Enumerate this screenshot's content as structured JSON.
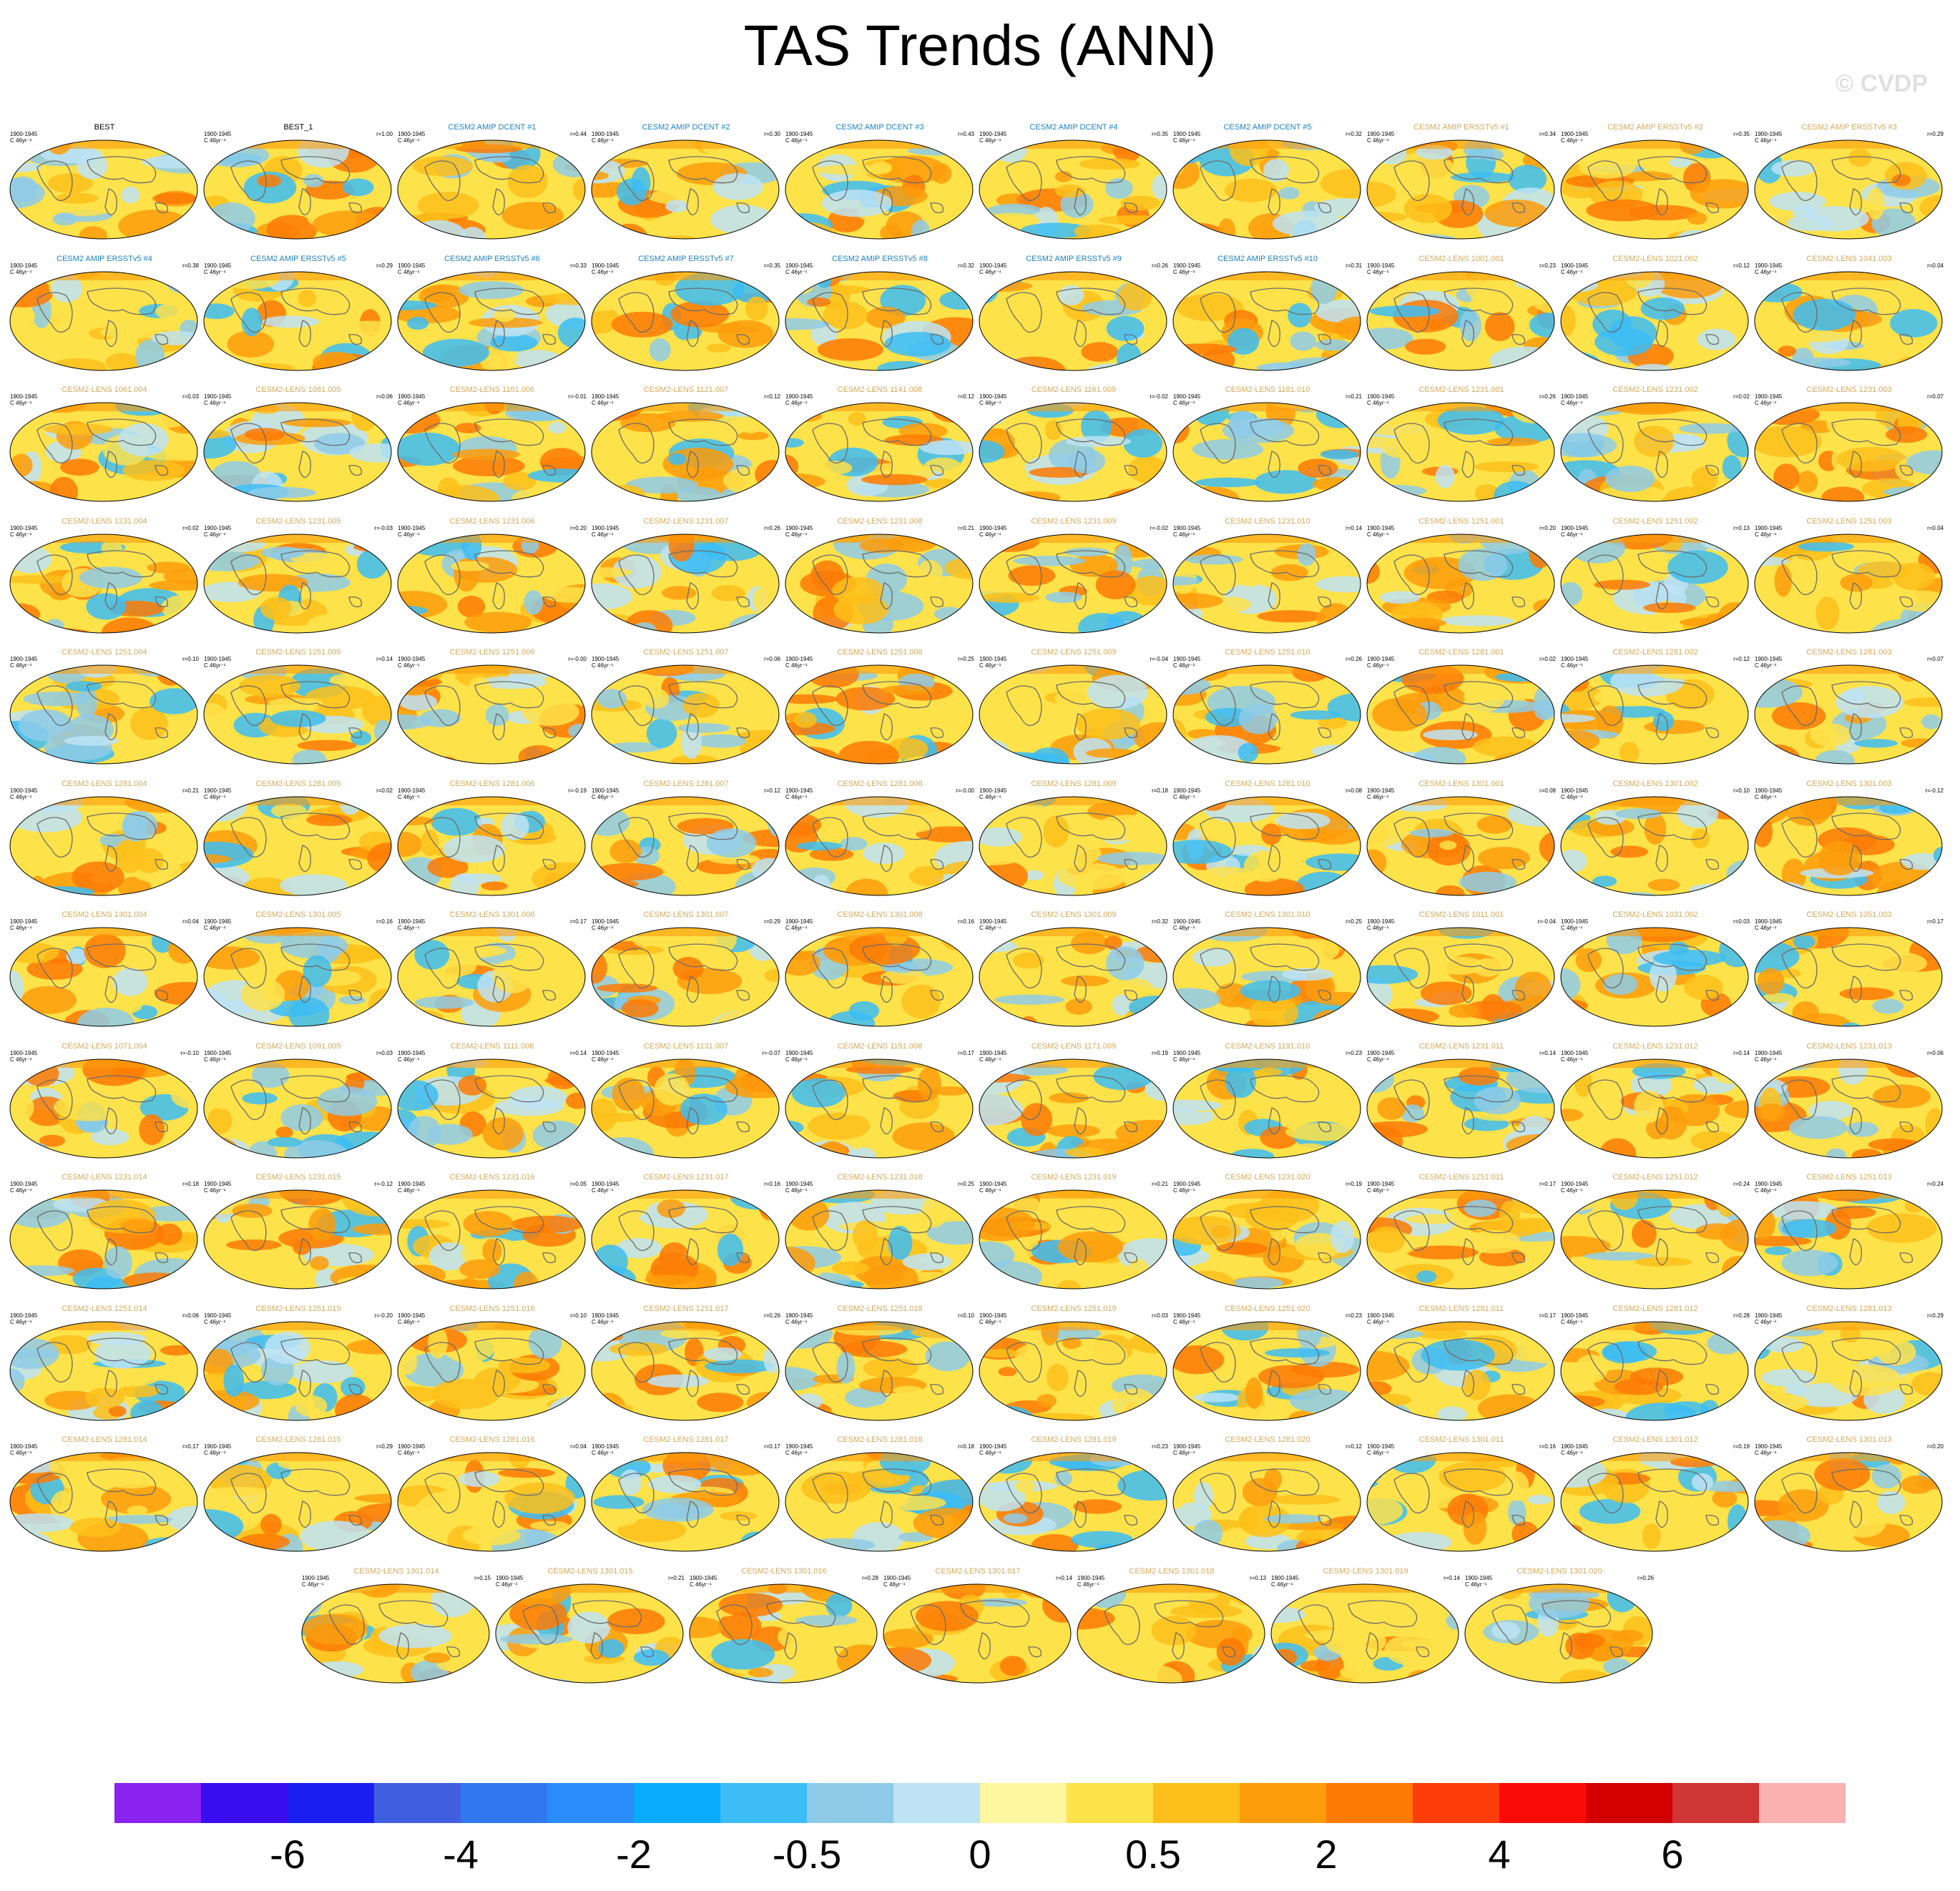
{
  "title": "TAS Trends (ANN)",
  "watermark": "© CVDP",
  "period": "1900-1945",
  "units": "C 46yr⁻¹",
  "panels": [
    {
      "name": "BEST",
      "type": "obs",
      "r": ""
    },
    {
      "name": "BEST_1",
      "type": "obs",
      "r": "r=1.00"
    },
    {
      "name": "CESM2 AMIP DCENT #1",
      "type": "amip",
      "r": "r=0.44"
    },
    {
      "name": "CESM2 AMIP DCENT #2",
      "type": "amip",
      "r": "r=0.30"
    },
    {
      "name": "CESM2 AMIP DCENT #3",
      "type": "amip",
      "r": "r=0.43"
    },
    {
      "name": "CESM2 AMIP DCENT #4",
      "type": "amip",
      "r": "r=0.35"
    },
    {
      "name": "CESM2 AMIP DCENT #5",
      "type": "amip",
      "r": "r=0.32"
    },
    {
      "name": "CESM2 AMIP ERSSTv5 #1",
      "type": "lens",
      "r": "r=0.34"
    },
    {
      "name": "CESM2 AMIP ERSSTv5 #2",
      "type": "lens",
      "r": "r=0.35"
    },
    {
      "name": "CESM2 AMIP ERSSTv5 #3",
      "type": "lens",
      "r": "r=0.29"
    },
    {
      "name": "CESM2 AMIP ERSSTv5 #4",
      "type": "amip",
      "r": "r=0.38"
    },
    {
      "name": "CESM2 AMIP ERSSTv5 #5",
      "type": "amip",
      "r": "r=0.29"
    },
    {
      "name": "CESM2 AMIP ERSSTv5 #6",
      "type": "amip",
      "r": "r=0.33"
    },
    {
      "name": "CESM2 AMIP ERSSTv5 #7",
      "type": "amip",
      "r": "r=0.35"
    },
    {
      "name": "CESM2 AMIP ERSSTv5 #8",
      "type": "amip",
      "r": "r=0.32"
    },
    {
      "name": "CESM2 AMIP ERSSTv5 #9",
      "type": "amip",
      "r": "r=0.26"
    },
    {
      "name": "CESM2 AMIP ERSSTv5 #10",
      "type": "amip",
      "r": "r=0.31"
    },
    {
      "name": "CESM2-LENS 1001.001",
      "type": "lens",
      "r": "r=0.23"
    },
    {
      "name": "CESM2-LENS 1021.002",
      "type": "lens",
      "r": "r=0.12"
    },
    {
      "name": "CESM2-LENS 1041.003",
      "type": "lens",
      "r": "r=0.04"
    },
    {
      "name": "CESM2-LENS 1061.004",
      "type": "lens",
      "r": "r=0.03"
    },
    {
      "name": "CESM2-LENS 1081.005",
      "type": "lens",
      "r": "r=0.06"
    },
    {
      "name": "CESM2-LENS 1101.006",
      "type": "lens",
      "r": "r=-0.01"
    },
    {
      "name": "CESM2-LENS 1121.007",
      "type": "lens",
      "r": "r=0.12"
    },
    {
      "name": "CESM2-LENS 1141.008",
      "type": "lens",
      "r": "r=0.12"
    },
    {
      "name": "CESM2-LENS 1161.009",
      "type": "lens",
      "r": "r=-0.02"
    },
    {
      "name": "CESM2-LENS 1181.010",
      "type": "lens",
      "r": "r=0.21"
    },
    {
      "name": "CESM2-LENS 1231.001",
      "type": "lens",
      "r": "r=0.26"
    },
    {
      "name": "CESM2-LENS 1231.002",
      "type": "lens",
      "r": "r=0.02"
    },
    {
      "name": "CESM2-LENS 1231.003",
      "type": "lens",
      "r": "r=0.07"
    },
    {
      "name": "CESM2-LENS 1231.004",
      "type": "lens",
      "r": "r=0.02"
    },
    {
      "name": "CESM2-LENS 1231.005",
      "type": "lens",
      "r": "r=-0.03"
    },
    {
      "name": "CESM2-LENS 1231.006",
      "type": "lens",
      "r": "r=0.20"
    },
    {
      "name": "CESM2-LENS 1231.007",
      "type": "lens",
      "r": "r=0.26"
    },
    {
      "name": "CESM2-LENS 1231.008",
      "type": "lens",
      "r": "r=0.21"
    },
    {
      "name": "CESM2-LENS 1231.009",
      "type": "lens",
      "r": "r=-0.02"
    },
    {
      "name": "CESM2-LENS 1231.010",
      "type": "lens",
      "r": "r=0.14"
    },
    {
      "name": "CESM2-LENS 1251.001",
      "type": "lens",
      "r": "r=0.20"
    },
    {
      "name": "CESM2-LENS 1251.002",
      "type": "lens",
      "r": "r=0.13"
    },
    {
      "name": "CESM2-LENS 1251.003",
      "type": "lens",
      "r": "r=0.04"
    },
    {
      "name": "CESM2-LENS 1251.004",
      "type": "lens",
      "r": "r=0.10"
    },
    {
      "name": "CESM2-LENS 1251.005",
      "type": "lens",
      "r": "r=0.14"
    },
    {
      "name": "CESM2-LENS 1251.006",
      "type": "lens",
      "r": "r=-0.00"
    },
    {
      "name": "CESM2-LENS 1251.007",
      "type": "lens",
      "r": "r=0.06"
    },
    {
      "name": "CESM2-LENS 1251.008",
      "type": "lens",
      "r": "r=0.25"
    },
    {
      "name": "CESM2-LENS 1251.009",
      "type": "lens",
      "r": "r=-0.04"
    },
    {
      "name": "CESM2-LENS 1251.010",
      "type": "lens",
      "r": "r=0.26"
    },
    {
      "name": "CESM2-LENS 1281.001",
      "type": "lens",
      "r": "r=0.02"
    },
    {
      "name": "CESM2-LENS 1281.002",
      "type": "lens",
      "r": "r=0.12"
    },
    {
      "name": "CESM2-LENS 1281.003",
      "type": "lens",
      "r": "r=0.07"
    },
    {
      "name": "CESM2-LENS 1281.004",
      "type": "lens",
      "r": "r=0.21"
    },
    {
      "name": "CESM2-LENS 1281.005",
      "type": "lens",
      "r": "r=0.02"
    },
    {
      "name": "CESM2-LENS 1281.006",
      "type": "lens",
      "r": "r=-0.19"
    },
    {
      "name": "CESM2-LENS 1281.007",
      "type": "lens",
      "r": "r=0.12"
    },
    {
      "name": "CESM2-LENS 1281.008",
      "type": "lens",
      "r": "r=-0.00"
    },
    {
      "name": "CESM2-LENS 1281.009",
      "type": "lens",
      "r": "r=0.18"
    },
    {
      "name": "CESM2-LENS 1281.010",
      "type": "lens",
      "r": "r=0.08"
    },
    {
      "name": "CESM2-LENS 1301.001",
      "type": "lens",
      "r": "r=0.08"
    },
    {
      "name": "CESM2-LENS 1301.002",
      "type": "lens",
      "r": "r=0.10"
    },
    {
      "name": "CESM2-LENS 1301.003",
      "type": "lens",
      "r": "r=-0.12"
    },
    {
      "name": "CESM2-LENS 1301.004",
      "type": "lens",
      "r": "r=0.04"
    },
    {
      "name": "CESM2-LENS 1301.005",
      "type": "lens",
      "r": "r=0.16"
    },
    {
      "name": "CESM2-LENS 1301.006",
      "type": "lens",
      "r": "r=0.17"
    },
    {
      "name": "CESM2-LENS 1301.007",
      "type": "lens",
      "r": "r=0.29"
    },
    {
      "name": "CESM2-LENS 1301.008",
      "type": "lens",
      "r": "r=0.16"
    },
    {
      "name": "CESM2-LENS 1301.009",
      "type": "lens",
      "r": "r=0.32"
    },
    {
      "name": "CESM2-LENS 1301.010",
      "type": "lens",
      "r": "r=0.25"
    },
    {
      "name": "CESM2-LENS 1011.001",
      "type": "lens",
      "r": "r=-0.04"
    },
    {
      "name": "CESM2-LENS 1031.002",
      "type": "lens",
      "r": "r=0.03"
    },
    {
      "name": "CESM2-LENS 1051.003",
      "type": "lens",
      "r": "r=0.17"
    },
    {
      "name": "CESM2-LENS 1071.004",
      "type": "lens",
      "r": "r=-0.10"
    },
    {
      "name": "CESM2-LENS 1091.005",
      "type": "lens",
      "r": "r=0.03"
    },
    {
      "name": "CESM2-LENS 1111.006",
      "type": "lens",
      "r": "r=0.14"
    },
    {
      "name": "CESM2-LENS 1131.007",
      "type": "lens",
      "r": "r=-0.07"
    },
    {
      "name": "CESM2-LENS 1151.008",
      "type": "lens",
      "r": "r=0.17"
    },
    {
      "name": "CESM2-LENS 1171.009",
      "type": "lens",
      "r": "r=0.19"
    },
    {
      "name": "CESM2-LENS 1191.010",
      "type": "lens",
      "r": "r=0.23"
    },
    {
      "name": "CESM2-LENS 1231.011",
      "type": "lens",
      "r": "r=0.14"
    },
    {
      "name": "CESM2-LENS 1231.012",
      "type": "lens",
      "r": "r=0.14"
    },
    {
      "name": "CESM2-LENS 1231.013",
      "type": "lens",
      "r": "r=0.06"
    },
    {
      "name": "CESM2-LENS 1231.014",
      "type": "lens",
      "r": "r=0.18"
    },
    {
      "name": "CESM2-LENS 1231.015",
      "type": "lens",
      "r": "r=-0.12"
    },
    {
      "name": "CESM2-LENS 1231.016",
      "type": "lens",
      "r": "r=0.05"
    },
    {
      "name": "CESM2-LENS 1231.017",
      "type": "lens",
      "r": "r=0.16"
    },
    {
      "name": "CESM2-LENS 1231.018",
      "type": "lens",
      "r": "r=0.25"
    },
    {
      "name": "CESM2-LENS 1231.019",
      "type": "lens",
      "r": "r=0.21"
    },
    {
      "name": "CESM2-LENS 1231.020",
      "type": "lens",
      "r": "r=0.19"
    },
    {
      "name": "CESM2-LENS 1251.011",
      "type": "lens",
      "r": "r=0.17"
    },
    {
      "name": "CESM2-LENS 1251.012",
      "type": "lens",
      "r": "r=0.24"
    },
    {
      "name": "CESM2-LENS 1251.013",
      "type": "lens",
      "r": "r=0.24"
    },
    {
      "name": "CESM2-LENS 1251.014",
      "type": "lens",
      "r": "r=0.06"
    },
    {
      "name": "CESM2-LENS 1251.015",
      "type": "lens",
      "r": "r=-0.20"
    },
    {
      "name": "CESM2-LENS 1251.016",
      "type": "lens",
      "r": "r=0.10"
    },
    {
      "name": "CESM2-LENS 1251.017",
      "type": "lens",
      "r": "r=0.26"
    },
    {
      "name": "CESM2-LENS 1251.018",
      "type": "lens",
      "r": "r=0.10"
    },
    {
      "name": "CESM2-LENS 1251.019",
      "type": "lens",
      "r": "r=0.03"
    },
    {
      "name": "CESM2-LENS 1251.020",
      "type": "lens",
      "r": "r=0.23"
    },
    {
      "name": "CESM2-LENS 1281.011",
      "type": "lens",
      "r": "r=0.17"
    },
    {
      "name": "CESM2-LENS 1281.012",
      "type": "lens",
      "r": "r=0.28"
    },
    {
      "name": "CESM2-LENS 1281.013",
      "type": "lens",
      "r": "r=0.29"
    },
    {
      "name": "CESM2-LENS 1281.014",
      "type": "lens",
      "r": "r=0.17"
    },
    {
      "name": "CESM2-LENS 1281.015",
      "type": "lens",
      "r": "r=0.29"
    },
    {
      "name": "CESM2-LENS 1281.016",
      "type": "lens",
      "r": "r=0.04"
    },
    {
      "name": "CESM2-LENS 1281.017",
      "type": "lens",
      "r": "r=0.17"
    },
    {
      "name": "CESM2-LENS 1281.018",
      "type": "lens",
      "r": "r=0.18"
    },
    {
      "name": "CESM2-LENS 1281.019",
      "type": "lens",
      "r": "r=0.23"
    },
    {
      "name": "CESM2-LENS 1281.020",
      "type": "lens",
      "r": "r=0.12"
    },
    {
      "name": "CESM2-LENS 1301.011",
      "type": "lens",
      "r": "r=0.16"
    },
    {
      "name": "CESM2-LENS 1301.012",
      "type": "lens",
      "r": "r=0.19"
    },
    {
      "name": "CESM2-LENS 1301.013",
      "type": "lens",
      "r": "r=0.20"
    },
    {
      "name": "CESM2-LENS 1301.014",
      "type": "lens",
      "r": "r=0.15"
    },
    {
      "name": "CESM2-LENS 1301.015",
      "type": "lens",
      "r": "r=0.21"
    },
    {
      "name": "CESM2-LENS 1301.016",
      "type": "lens",
      "r": "r=0.28"
    },
    {
      "name": "CESM2-LENS 1301.017",
      "type": "lens",
      "r": "r=0.14"
    },
    {
      "name": "CESM2-LENS 1301.018",
      "type": "lens",
      "r": "r=0.13"
    },
    {
      "name": "CESM2-LENS 1301.019",
      "type": "lens",
      "r": "r=0.14"
    },
    {
      "name": "CESM2-LENS 1301.020",
      "type": "lens",
      "r": "r=0.26"
    }
  ],
  "colorbar": {
    "colors": [
      "#8a22f0",
      "#3a0cf0",
      "#1a1ff0",
      "#3f5fe0",
      "#2f78f0",
      "#2a8cf8",
      "#0aaaff",
      "#3cbdf5",
      "#8ecbe8",
      "#bde3f5",
      "#fff6a0",
      "#fde24a",
      "#fdbf1a",
      "#fd9c0a",
      "#fd7a05",
      "#fc3d0a",
      "#fc0a05",
      "#d40000",
      "#cf3535",
      "#fcb1b1"
    ],
    "labels": [
      "-6",
      "-4",
      "-2",
      "-0.5",
      "0",
      "0.5",
      "2",
      "4",
      "6"
    ]
  }
}
